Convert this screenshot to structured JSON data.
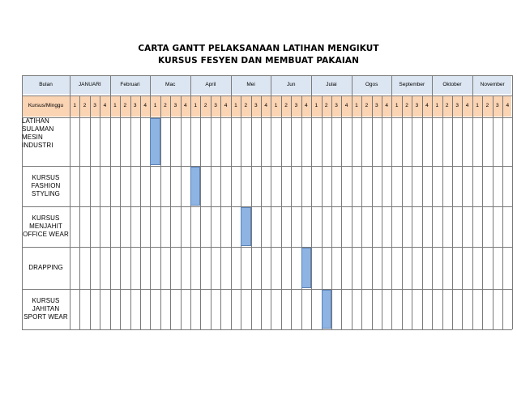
{
  "title": {
    "line1": "CARTA GANTT PELAKSANAAN LATIHAN MENGIKUT",
    "line2": "KURSUS FESYEN DAN MEMBUAT PAKAIAN"
  },
  "header": {
    "month_label": "Bulan",
    "week_label": "Kursus/Minggu",
    "months": [
      "JANUARI",
      "Februari",
      "Mac",
      "April",
      "Mei",
      "Jun",
      "Julai",
      "Ogos",
      "September",
      "Oktober",
      "November"
    ],
    "weeks": [
      "1",
      "2",
      "3",
      "4"
    ]
  },
  "activities": [
    {
      "label": "LATIHAN SULAMAN MESIN INDUSTRI",
      "lines": [
        "LATIHAN",
        "SULAMAN",
        "MESIN",
        "INDUSTRI"
      ],
      "month_index": 2,
      "week": 1
    },
    {
      "label": "KURSUS FASHION STYLING",
      "lines": [
        "KURSUS",
        "FASHION",
        "STYLING"
      ],
      "month_index": 3,
      "week": 1
    },
    {
      "label": "KURSUS MENJAHIT OFFICE WEAR",
      "lines": [
        "KURSUS",
        "MENJAHIT",
        "OFFICE WEAR"
      ],
      "month_index": 4,
      "week": 2
    },
    {
      "label": "DRAPPING",
      "lines": [
        "DRAPPING"
      ],
      "month_index": 5,
      "week": 4
    },
    {
      "label": "KURSUS JAHITAN SPORT WEAR",
      "lines": [
        "KURSUS",
        "JAHITAN",
        "SPORT WEAR"
      ],
      "month_index": 6,
      "week": 2
    }
  ],
  "colors": {
    "month_band": "#dce6f2",
    "week_band": "#fbd4b4",
    "bar": "#8eb4e3",
    "grid": "#7a7a7a"
  }
}
